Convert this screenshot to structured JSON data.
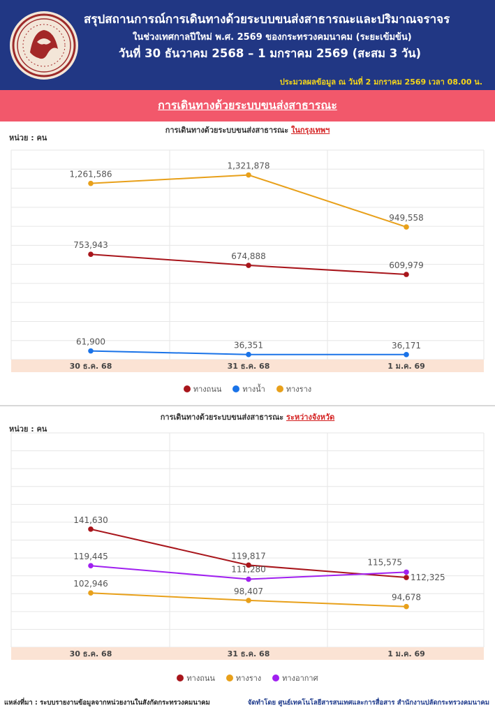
{
  "header": {
    "title": "สรุปสถานการณ์การเดินทางด้วยระบบขนส่งสาธารณะและปริมาณจราจร",
    "subtitle": "ในช่วงเทศกาลปีใหม่ พ.ศ. 2569 ของกระทรวงคมนาคม (ระยะเข้มข้น)",
    "date_range": "วันที่  30 ธันวาคม 2568 – 1 มกราคม 2569 (สะสม 3 วัน)",
    "processed_at": "ประมวลผลข้อมูล ณ วันที่  2 มกราคม 2569 เวลา 08.00 น."
  },
  "banner": {
    "label": "การเดินทางด้วยระบบขนส่งสาธารณะ"
  },
  "footer": {
    "source": "แหล่งที่มา : ระบบรายงานข้อมูลจากหน่วยงานในสังกัดกระทรวงคมนาคม",
    "producer": "จัดทำโดย ศูนย์เทคโนโลยีสารสนเทศและการสื่อสาร สำนักงานปลัดกระทรวงคมนาคม"
  },
  "colors": {
    "header_bg": "#213784",
    "banner_bg": "#f2586b",
    "road": "#a8151b",
    "water": "#1a73e8",
    "rail": "#e8a01a",
    "air": "#a020f0"
  },
  "chart_data": [
    {
      "type": "line",
      "title_prefix": "การเดินทางด้วยระบบขนส่งสาธารณะ ",
      "title_highlight": "ในกรุงเทพฯ",
      "unit_label": "หน่วย : คน",
      "categories": [
        "30 ธ.ค. 68",
        "31 ธ.ค. 68",
        "1 ม.ค. 69"
      ],
      "series": [
        {
          "name": "ทางถนน",
          "values": [
            753943,
            674888,
            609979
          ],
          "labels": [
            "753,943",
            "674,888",
            "609,979"
          ],
          "color": "#a8151b"
        },
        {
          "name": "ทางน้ำ",
          "values": [
            61900,
            36351,
            36171
          ],
          "labels": [
            "61,900",
            "36,351",
            "36,171"
          ],
          "color": "#1a73e8"
        },
        {
          "name": "ทางราง",
          "values": [
            1261586,
            1321878,
            949558
          ],
          "labels": [
            "1,261,586",
            "1,321,878",
            "949,558"
          ],
          "color": "#e8a01a"
        }
      ],
      "ylim": [
        0,
        1500000
      ]
    },
    {
      "type": "line",
      "title_prefix": "การเดินทางด้วยระบบขนส่งสาธารณะ ",
      "title_highlight": "ระหว่างจังหวัด",
      "unit_label": "หน่วย : คน",
      "categories": [
        "30 ธ.ค. 68",
        "31 ธ.ค. 68",
        "1 ม.ค. 69"
      ],
      "series": [
        {
          "name": "ทางถนน",
          "values": [
            141630,
            119817,
            112325
          ],
          "labels": [
            "141,630",
            "119,817",
            "112,325"
          ],
          "color": "#a8151b"
        },
        {
          "name": "ทางราง",
          "values": [
            102946,
            98407,
            94678
          ],
          "labels": [
            "102,946",
            "98,407",
            "94,678"
          ],
          "color": "#e8a01a"
        },
        {
          "name": "ทางอากาศ",
          "values": [
            119445,
            111280,
            115575
          ],
          "labels": [
            "119,445",
            "111,280",
            "115,575"
          ],
          "color": "#a020f0"
        }
      ],
      "ylim": [
        70000,
        200000
      ]
    }
  ]
}
